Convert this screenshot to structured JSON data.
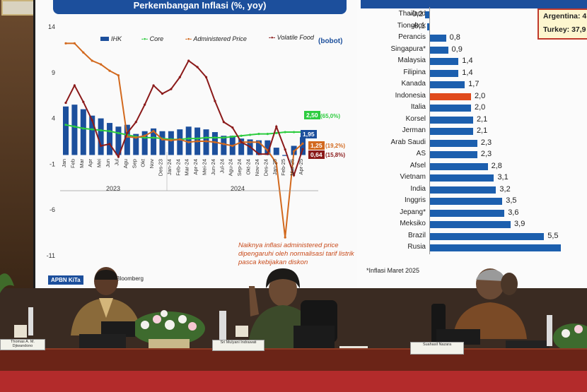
{
  "left_chart": {
    "title": "Perkembangan Inflasi (%, yoy)",
    "legend": {
      "ihk": "IHK",
      "core": "Core",
      "administered": "Administered Price",
      "volatile": "Volatile Food",
      "bobot": "(bobot)"
    },
    "y_ticks": [
      "14",
      "9",
      "4",
      "-1",
      "-6",
      "-11"
    ],
    "year_labels": [
      "2023",
      "2024"
    ],
    "tags": {
      "core_value": "2,50",
      "core_weight": "(65,0%)",
      "ihk_value": "1,95",
      "administered_value": "1,25",
      "administered_weight": "(19,2%)",
      "volatile_value": "0,64",
      "volatile_weight": "(15,8%)"
    },
    "annotation": "Naiknya inflasi administered price dipengaruhi oleh normalisasi tarif listrik pasca kebijakan diskon",
    "footer_badge": "APBN KiTa",
    "footer_source": "S... Bloomberg",
    "colors": {
      "ihk": "#1c4f9c",
      "core": "#2ecc40",
      "administered": "#d2691e",
      "volatile": "#8b1a1a"
    }
  },
  "chart_data": {
    "type": "line",
    "title": "Perkembangan Inflasi (%, yoy)",
    "categories": [
      "Jan",
      "Feb",
      "Mar",
      "Apr",
      "Mei",
      "Jun",
      "Jul",
      "Agu",
      "Sep",
      "Okt",
      "Nov",
      "Des-23",
      "Jan-24",
      "Feb-24",
      "Mar-24",
      "Apr-24",
      "Mei-24",
      "Jun-24",
      "Jul-24",
      "Agu-24",
      "Sep-24",
      "Okt-24",
      "Nov-24",
      "Des-24",
      "Jan-25",
      "Feb-25",
      "Mar-25",
      "Apr-25"
    ],
    "ylim": [
      -11,
      14
    ],
    "series": [
      {
        "name": "IHK",
        "values": [
          5.3,
          5.5,
          5.0,
          4.3,
          4.0,
          3.5,
          3.1,
          3.3,
          2.3,
          2.6,
          2.9,
          2.6,
          2.6,
          2.8,
          3.1,
          3.0,
          2.8,
          2.5,
          2.1,
          2.1,
          1.8,
          1.7,
          1.6,
          1.6,
          0.8,
          -0.1,
          1.0,
          1.95
        ]
      },
      {
        "name": "Core",
        "values": [
          3.3,
          3.1,
          2.9,
          2.8,
          2.7,
          2.6,
          2.4,
          2.2,
          2.0,
          1.9,
          1.9,
          1.8,
          1.7,
          1.7,
          1.8,
          1.8,
          1.9,
          1.9,
          1.9,
          2.0,
          2.1,
          2.2,
          2.3,
          2.3,
          2.4,
          2.5,
          2.5,
          2.5
        ]
      },
      {
        "name": "Administered Price",
        "values": [
          12.2,
          12.2,
          11.2,
          10.3,
          9.9,
          9.2,
          8.7,
          2.0,
          1.9,
          2.1,
          2.6,
          1.7,
          1.6,
          1.7,
          1.4,
          1.5,
          1.5,
          1.4,
          1.2,
          1.0,
          1.4,
          1.4,
          1.4,
          0.5,
          -0.9,
          -9.0,
          0.4,
          1.25
        ]
      },
      {
        "name": "Volatile Food",
        "values": [
          5.7,
          7.6,
          5.8,
          3.8,
          1.0,
          1.2,
          -0.2,
          2.4,
          3.6,
          5.5,
          7.6,
          6.7,
          7.2,
          8.5,
          10.3,
          9.6,
          8.5,
          5.9,
          3.6,
          3.0,
          1.4,
          0.9,
          0.1,
          0.1,
          3.1,
          0.6,
          -2.2,
          0.64
        ]
      }
    ]
  },
  "right_chart": {
    "footnote": "*Inflasi Maret 2025",
    "callout": [
      "Argentina: 4",
      "Turkey: 37,9"
    ],
    "countries": [
      "Thailand",
      "Tiongkok",
      "Perancis",
      "Singapura*",
      "Malaysia",
      "Filipina",
      "Kanada",
      "Indonesia",
      "Italia",
      "Korsel",
      "Jerman",
      "Arab Saudi",
      "AS",
      "Afsel",
      "Vietnam",
      "India",
      "Inggris",
      "Jepang*",
      "Meksiko",
      "Brazil",
      "Rusia"
    ],
    "values": [
      "-0,2",
      "-0,1",
      "0,8",
      "0,9",
      "1,4",
      "1,4",
      "1,7",
      "2,0",
      "2,0",
      "2,1",
      "2,1",
      "2,3",
      "2,3",
      "2,8",
      "3,1",
      "3,2",
      "3,5",
      "3,6",
      "3,9",
      "5,5",
      ""
    ],
    "colors": {
      "bar": "#1c5fae",
      "highlight": "#e04a1c"
    }
  },
  "nameplates": [
    "Thomas A. M. Djiwandono",
    "Sri Mulyani Indrawati",
    "Suahasil Nazara"
  ]
}
